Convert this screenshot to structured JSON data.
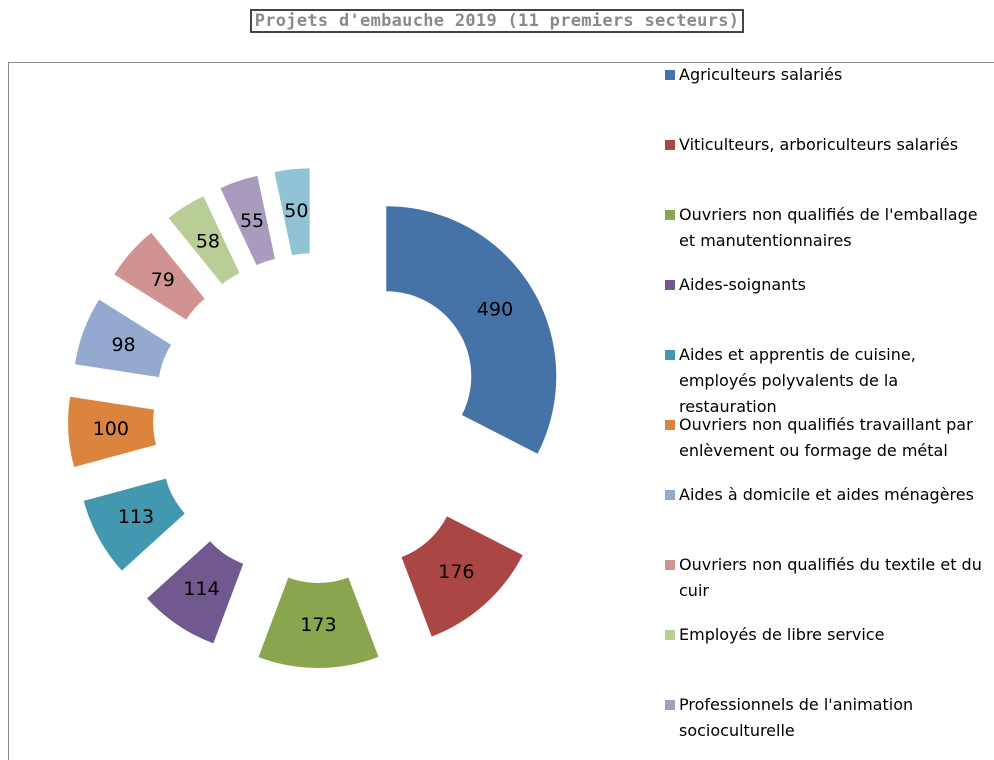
{
  "chart_data": {
    "type": "donut",
    "title": "Projets d'embauche 2019  (11 premiers secteurs)",
    "categories": [
      "Agriculteurs salariés",
      "Viticulteurs, arboriculteurs salariés",
      "Ouvriers non qualifiés de l'emballage et manutentionnaires",
      "Aides-soignants",
      "Aides et apprentis de cuisine, employés polyvalents de la restauration",
      "Ouvriers non qualifiés travaillant par enlèvement ou formage de métal",
      "Aides à domicile et aides ménagères",
      "Ouvriers non qualifiés du textile et du cuir",
      "Employés de libre service",
      "Professionnels de l'animation socioculturelle",
      null
    ],
    "values": [
      490,
      176,
      173,
      114,
      113,
      100,
      98,
      79,
      58,
      55,
      50
    ],
    "colors": [
      "#4572a7",
      "#aa4643",
      "#89a54e",
      "#71588f",
      "#4198af",
      "#db843d",
      "#93a9cf",
      "#d19392",
      "#b9cd96",
      "#a99bbd",
      "#92c3d4"
    ],
    "legend": "right"
  }
}
